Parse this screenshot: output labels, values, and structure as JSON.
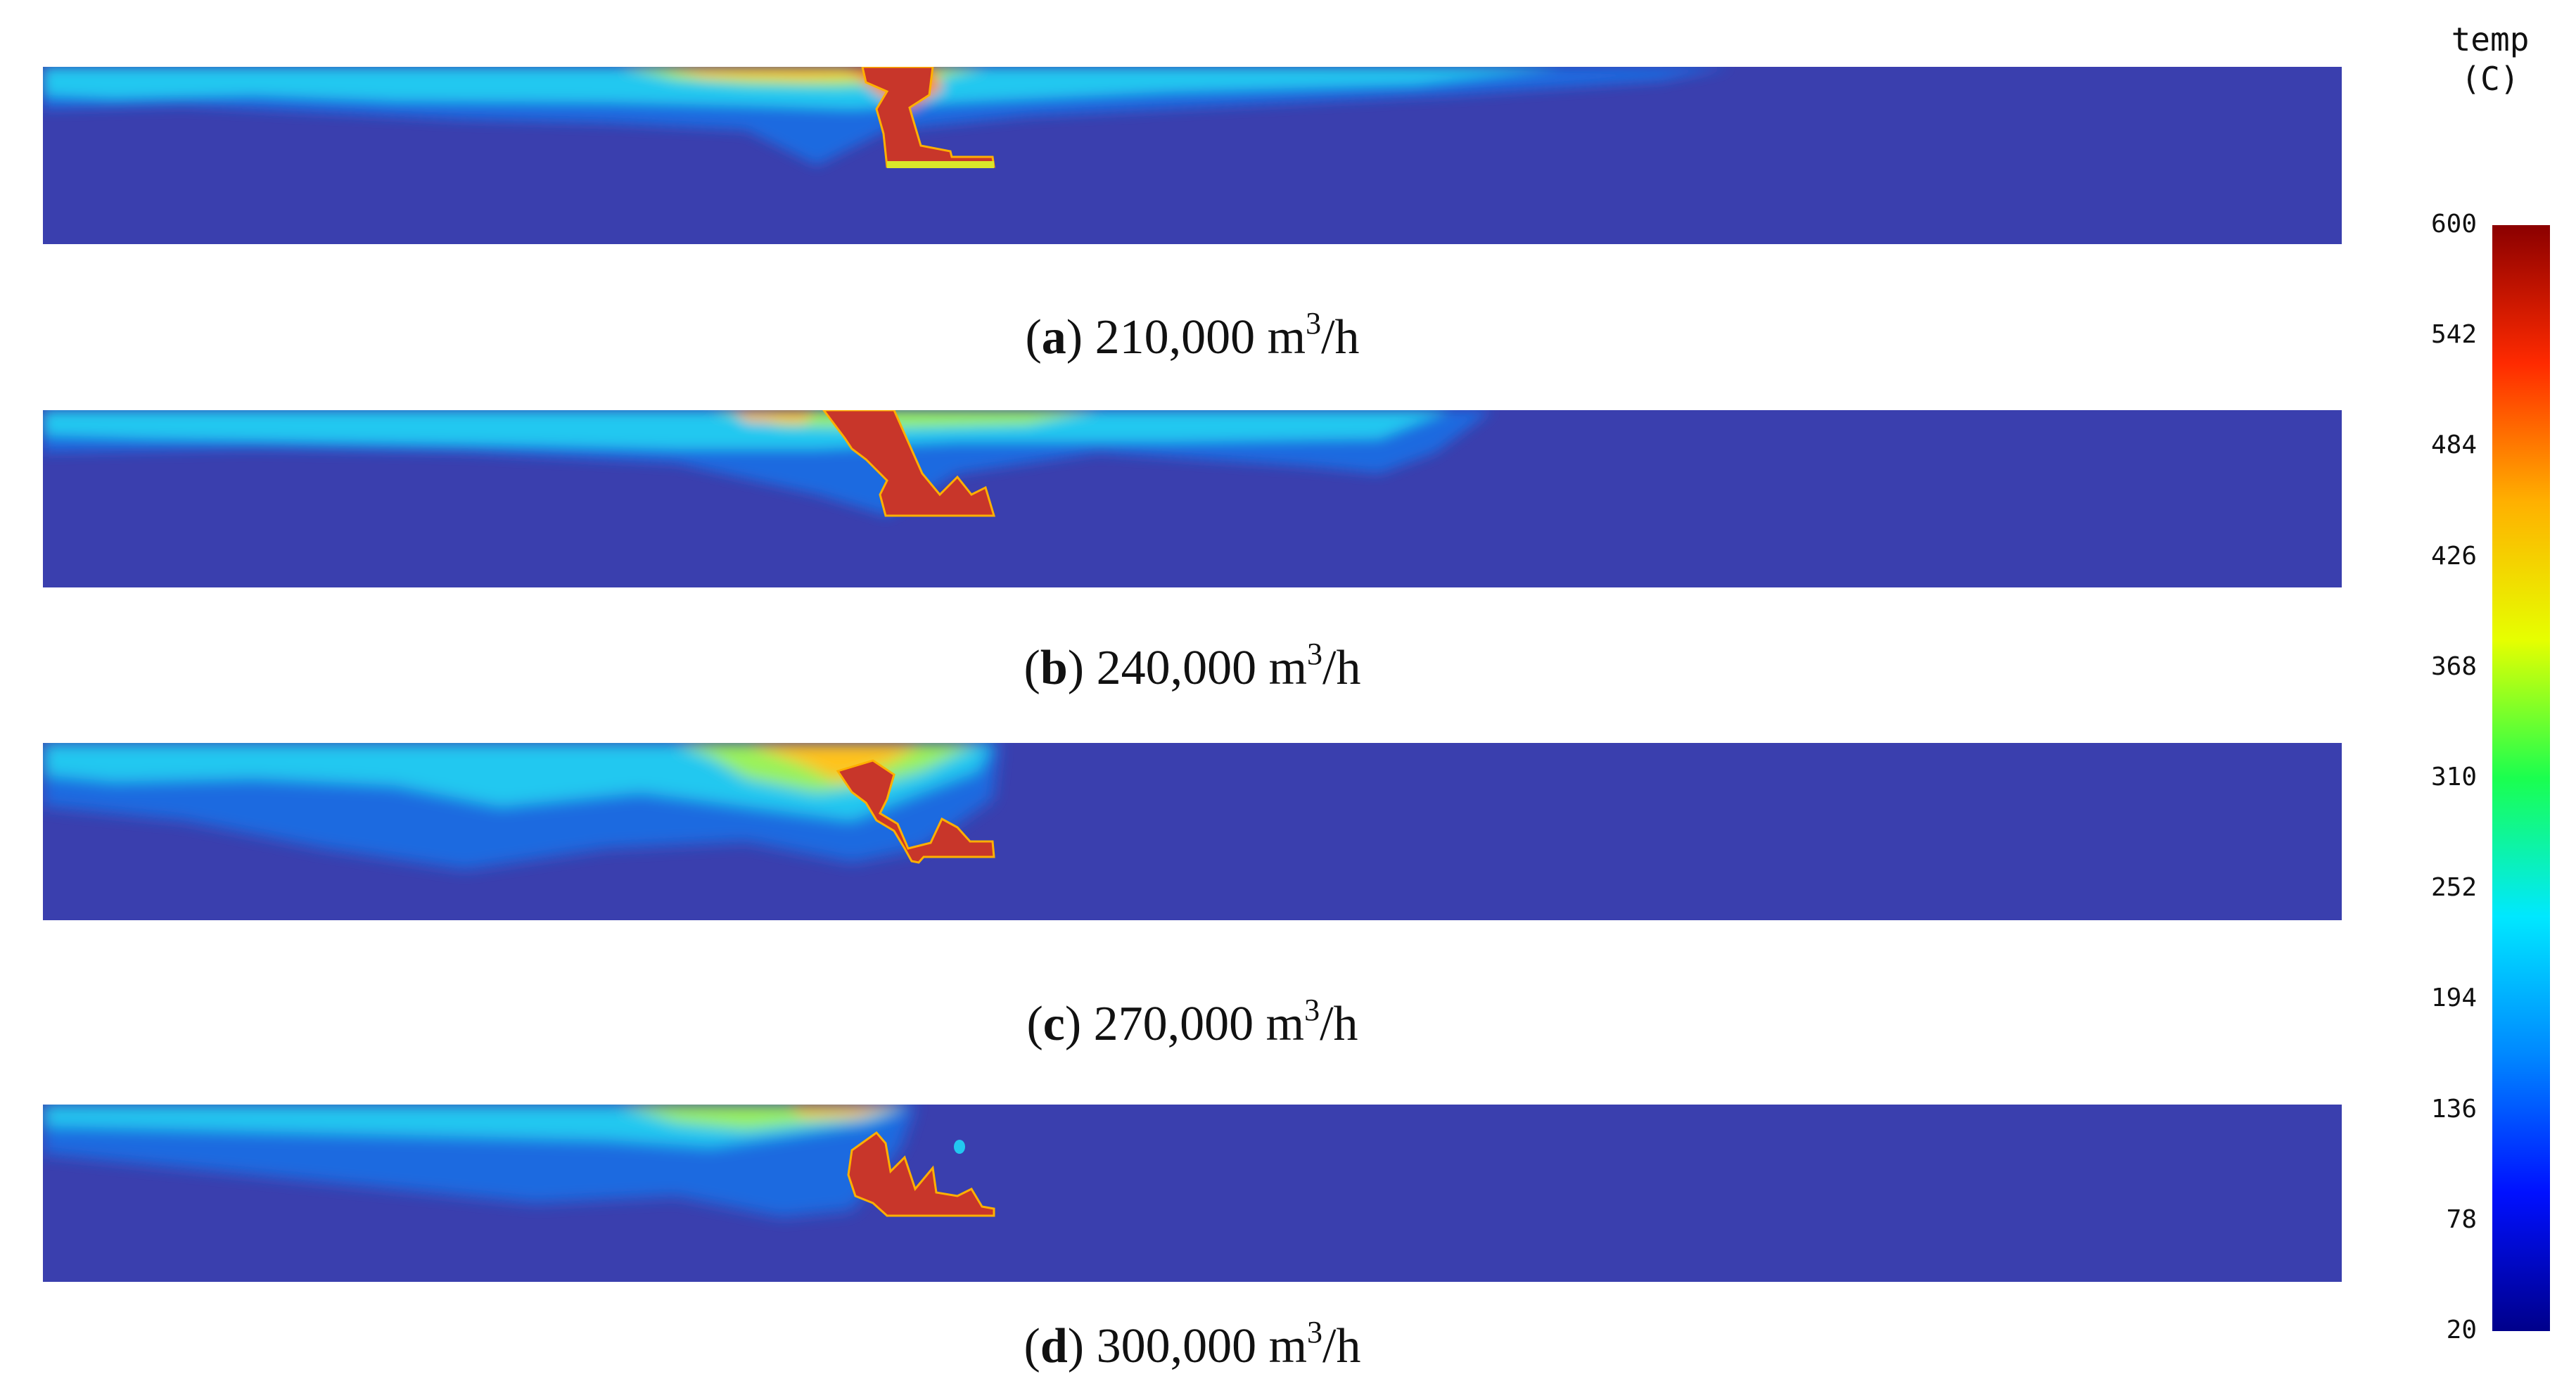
{
  "panels": [
    {
      "letter": "a",
      "value": "210,000 m",
      "sup": "3",
      "unit": "/h"
    },
    {
      "letter": "b",
      "value": "240,000 m",
      "sup": "3",
      "unit": "/h"
    },
    {
      "letter": "c",
      "value": "270,000 m",
      "sup": "3",
      "unit": "/h"
    },
    {
      "letter": "d",
      "value": "300,000 m",
      "sup": "3",
      "unit": "/h"
    }
  ],
  "legend": {
    "title_line1": "temp",
    "title_line2": "(C)",
    "ticks": [
      "600",
      "542",
      "484",
      "426",
      "368",
      "310",
      "252",
      "194",
      "136",
      "78",
      "20"
    ],
    "min": 20,
    "max": 600,
    "colors": [
      "#8b0000",
      "#ff2a00",
      "#ffb000",
      "#e6ff00",
      "#1aff4f",
      "#00e8ff",
      "#0088ff",
      "#0010ff",
      "#00008b"
    ]
  }
}
